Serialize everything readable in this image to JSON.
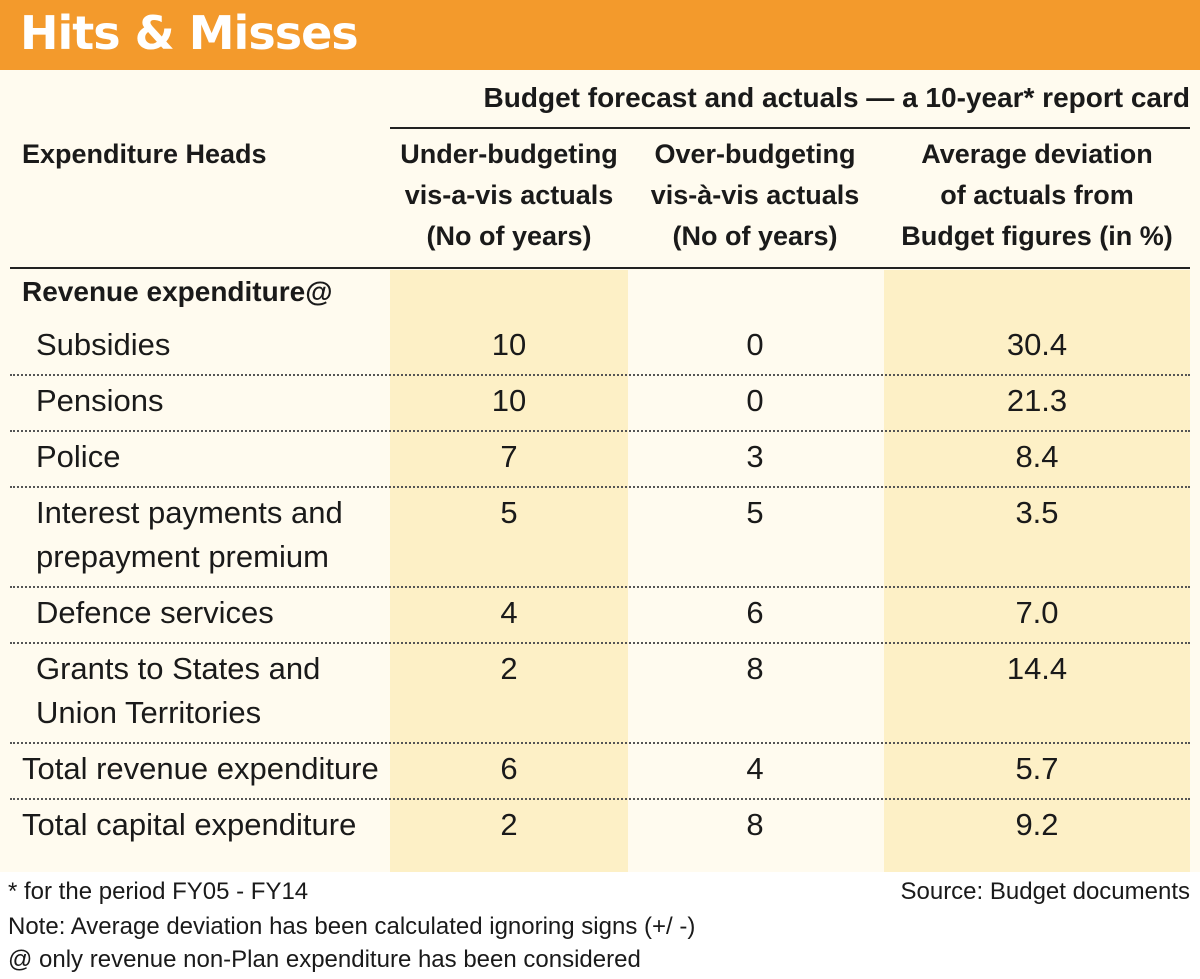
{
  "title": "Hits & Misses",
  "colors": {
    "accent": "#f39a2c",
    "card_bg": "#fffbef",
    "column_band": "#fdf0c6"
  },
  "chart_data": {
    "type": "table",
    "title": "Budget forecast and actuals — a 10-year* report card",
    "row_header": "Expenditure Heads",
    "columns": [
      "Under-budgeting vis-a-vis actuals (No of years)",
      "Over-budgeting vis-à-vis actuals (No of years)",
      "Average deviation of actuals from Budget figures (in %)"
    ],
    "column_lines": [
      [
        "Under-budgeting",
        "vis-a-vis actuals",
        "(No of years)"
      ],
      [
        "Over-budgeting",
        "vis-à-vis actuals",
        "(No of years)"
      ],
      [
        "Average deviation",
        "of actuals from",
        "Budget figures (in %)"
      ]
    ],
    "section_label": "Revenue expenditure@",
    "rows": [
      {
        "label": [
          "Subsidies"
        ],
        "values": [
          "10",
          "0",
          "30.4"
        ]
      },
      {
        "label": [
          "Pensions"
        ],
        "values": [
          "10",
          "0",
          "21.3"
        ]
      },
      {
        "label": [
          "Police"
        ],
        "values": [
          "7",
          "3",
          "8.4"
        ]
      },
      {
        "label": [
          "Interest payments and",
          "prepayment premium"
        ],
        "values": [
          "5",
          "5",
          "3.5"
        ]
      },
      {
        "label": [
          "Defence services"
        ],
        "values": [
          "4",
          "6",
          "7.0"
        ]
      },
      {
        "label": [
          "Grants to States and",
          "Union Territories"
        ],
        "values": [
          "2",
          "8",
          "14.4"
        ]
      },
      {
        "label": [
          "Total revenue expenditure"
        ],
        "values": [
          "6",
          "4",
          "5.7"
        ]
      },
      {
        "label": [
          "Total capital expenditure"
        ],
        "values": [
          "2",
          "8",
          "9.2"
        ]
      }
    ]
  },
  "footnotes": {
    "period": "* for the period FY05 - FY14",
    "source": "Source: Budget documents",
    "note": "Note: Average deviation has been calculated ignoring signs (+/ -)",
    "revenue_note": "@ only revenue non-Plan expenditure has been considered"
  }
}
